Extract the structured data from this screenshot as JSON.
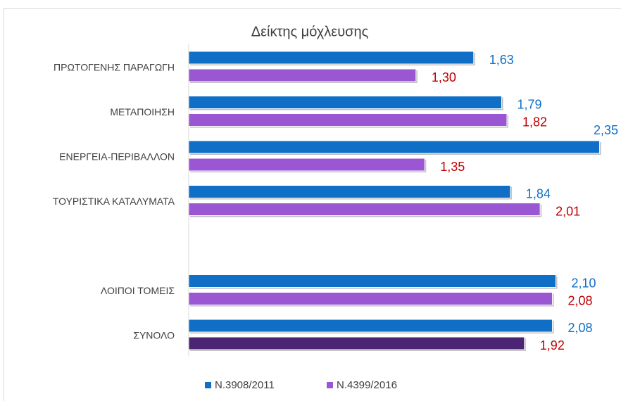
{
  "chart_data": {
    "type": "bar",
    "orientation": "horizontal",
    "title": "Δείκτης μόχλευσης",
    "categories": [
      "ΠΡΩΤΟΓΕΝΗΣ ΠΑΡΑΓΩΓΗ",
      "ΜΕΤΑΠΟΙΗΣΗ",
      "ΕΝΕΡΓΕΙΑ-ΠΕΡΙΒΑΛΛΟΝ",
      "ΤΟΥΡΙΣΤΙΚΑ ΚΑΤΑΛΥΜΑΤΑ",
      null,
      "ΛΟΙΠΟΙ ΤΟΜΕΙΣ",
      "ΣΥΝΟΛΟ"
    ],
    "series": [
      {
        "name": "N.3908/2011",
        "color": "#0f6fc6",
        "label_color": "#0f6fc6",
        "values": [
          1.63,
          1.79,
          2.35,
          1.84,
          null,
          2.1,
          2.08
        ],
        "value_labels": [
          "1,63",
          "1,79",
          "2,35",
          "1,84",
          null,
          "2,10",
          "2,08"
        ]
      },
      {
        "name": "N.4399/2016",
        "color": "#9b57d3",
        "label_color": "#c00000",
        "colors": [
          "#9b57d3",
          "#9b57d3",
          "#9b57d3",
          "#9b57d3",
          null,
          "#9b57d3",
          "#4b2473"
        ],
        "values": [
          1.3,
          1.82,
          1.35,
          2.01,
          null,
          2.08,
          1.92
        ],
        "value_labels": [
          "1,30",
          "1,82",
          "1,35",
          "2,01",
          null,
          "2,08",
          "1,92"
        ]
      }
    ],
    "xlim": [
      0,
      2.4
    ],
    "legend": "bottom"
  }
}
